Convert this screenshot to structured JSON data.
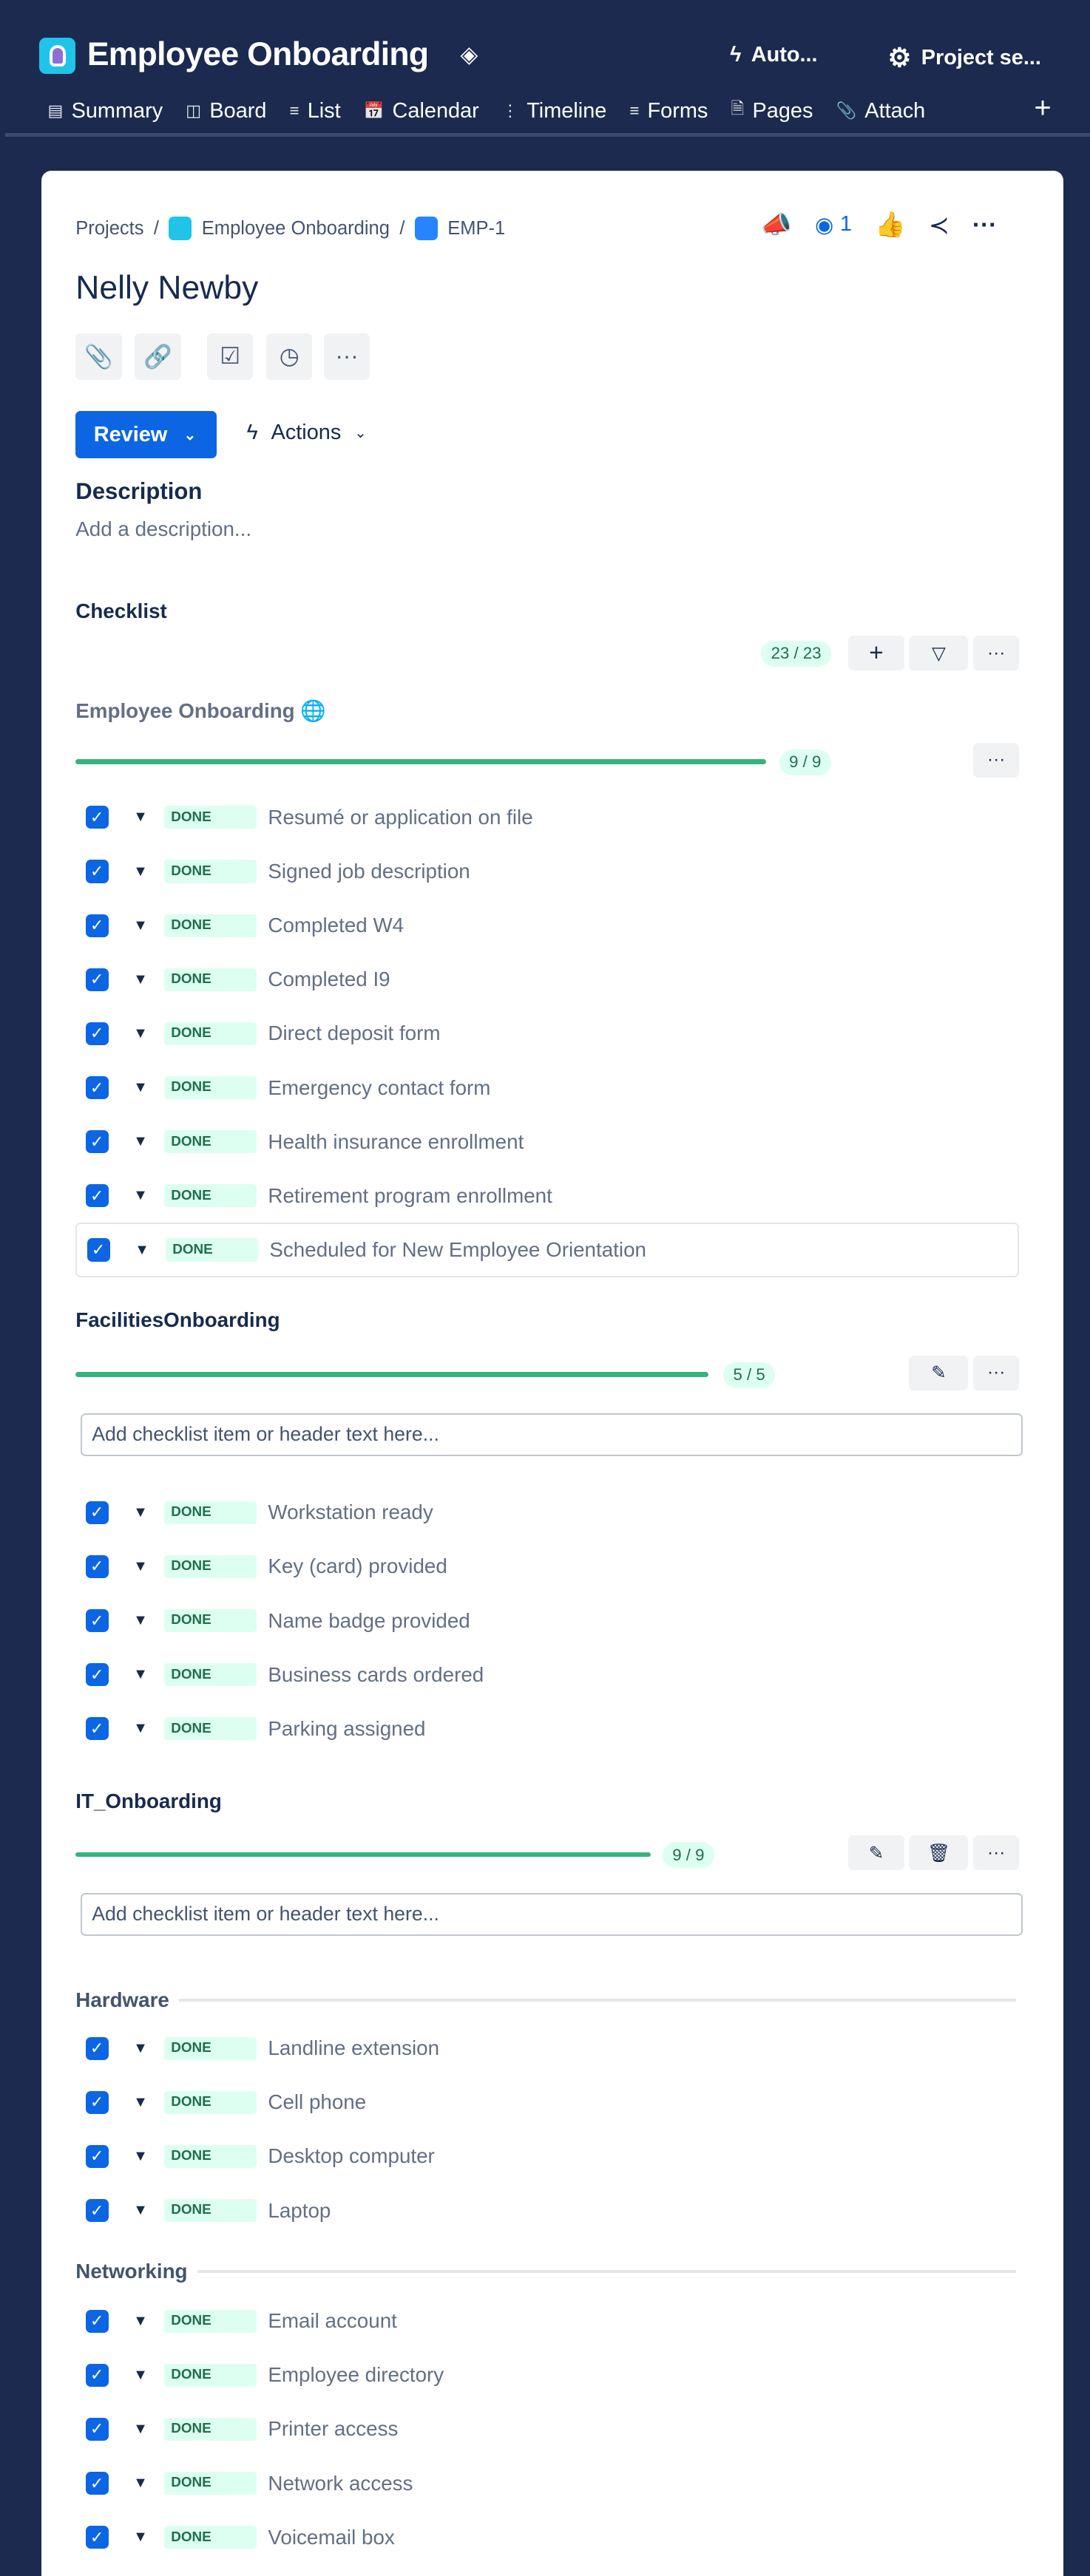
{
  "header": {
    "project_title": "Employee Onboarding",
    "automation_label": "Auto...",
    "settings_label": "Project se..."
  },
  "nav": [
    {
      "label": "Summary",
      "icon": "summary-icon"
    },
    {
      "label": "Board",
      "icon": "board-icon"
    },
    {
      "label": "List",
      "icon": "list-icon"
    },
    {
      "label": "Calendar",
      "icon": "calendar-icon"
    },
    {
      "label": "Timeline",
      "icon": "timeline-icon"
    },
    {
      "label": "Forms",
      "icon": "forms-icon"
    },
    {
      "label": "Pages",
      "icon": "pages-icon"
    },
    {
      "label": "Attach",
      "icon": "attachment-icon"
    }
  ],
  "breadcrumb": {
    "root": "Projects",
    "project": "Employee Onboarding",
    "issue": "EMP-1"
  },
  "watchers": "1",
  "issue": {
    "title": "Nelly Newby",
    "status": "Review",
    "actions_label": "Actions",
    "description_heading": "Description",
    "description_placeholder": "Add a description..."
  },
  "checklist": {
    "heading": "Checklist",
    "total": "23 / 23",
    "status_label": "DONE",
    "input_placeholder": "Add checklist item or header text here...",
    "groups": [
      {
        "name": "Employee Onboarding",
        "count": "9 / 9",
        "progress": 100,
        "items": [
          "Resumé or application on file",
          "Signed job description",
          "Completed W4",
          "Completed I9",
          "Direct deposit form",
          "Emergency contact form",
          "Health insurance enrollment",
          "Retirement program enrollment",
          "Scheduled for New Employee Orientation"
        ]
      },
      {
        "name": "FacilitiesOnboarding",
        "count": "5 / 5",
        "progress": 100,
        "items": [
          "Workstation ready",
          "Key (card) provided",
          "Name badge provided",
          "Business cards ordered",
          "Parking assigned"
        ]
      },
      {
        "name": "IT_Onboarding",
        "count": "9 / 9",
        "progress": 100,
        "sections": [
          {
            "header": "Hardware",
            "items": [
              "Landline extension",
              "Cell phone",
              "Desktop computer",
              "Laptop"
            ]
          },
          {
            "header": "Networking",
            "items": [
              "Email account",
              "Employee directory",
              "Printer access",
              "Network access",
              "Voicemail box"
            ]
          }
        ]
      }
    ]
  },
  "colors": {
    "navy": "#1b2a4e",
    "primary": "#0c66e4",
    "success": "#36b37e"
  }
}
